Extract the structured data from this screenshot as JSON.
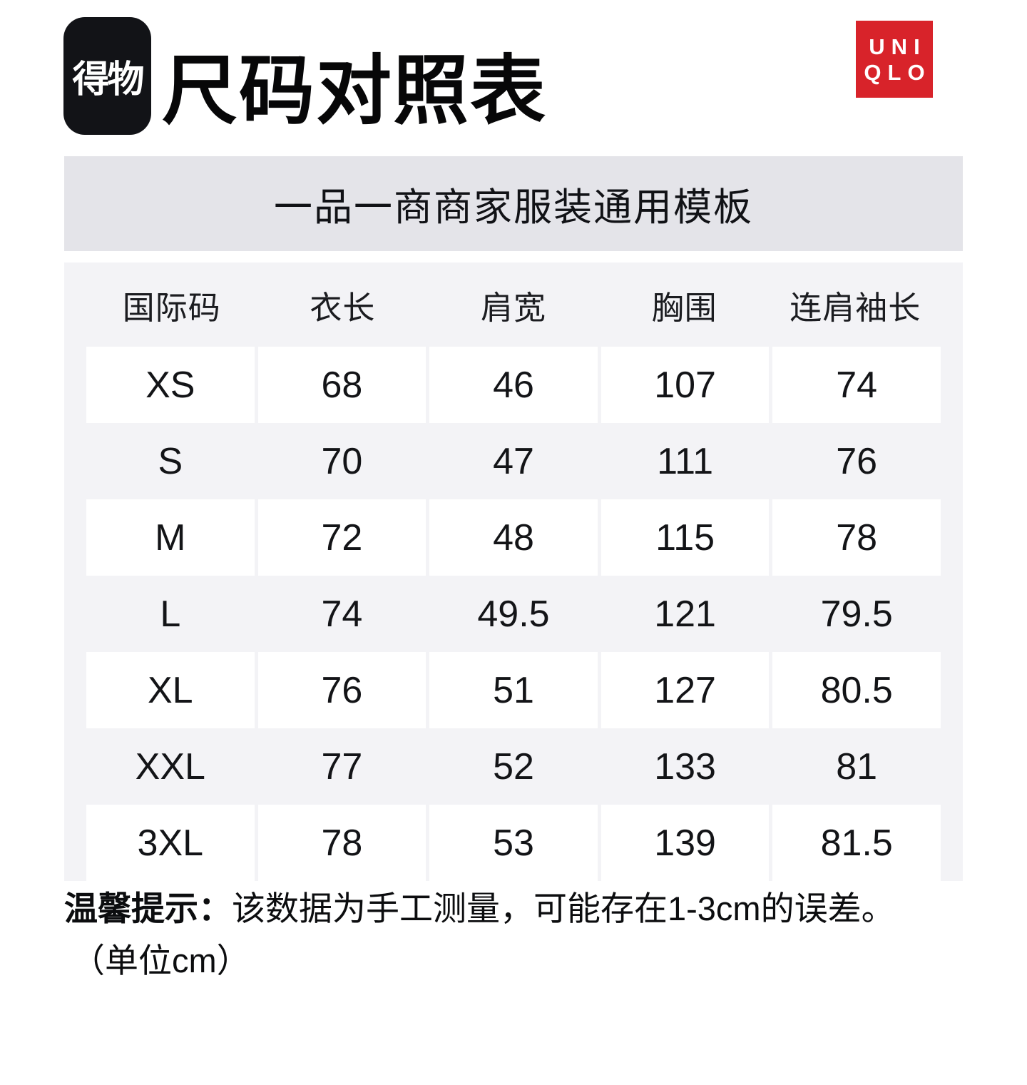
{
  "colors": {
    "brand_red": "#d8232a",
    "banner_bg": "#e4e4e9",
    "table_bg": "#f3f3f6",
    "cell_white": "#ffffff"
  },
  "header": {
    "app_logo_text": "得物",
    "title": "尺码对照表",
    "brand_logo": {
      "line1": "UNI",
      "line2": "QLO"
    }
  },
  "banner": {
    "text": "一品一商商家服装通用模板"
  },
  "size_table": {
    "columns": [
      "国际码",
      "衣长",
      "肩宽",
      "胸围",
      "连肩袖长"
    ],
    "rows": [
      {
        "size": "XS",
        "values": [
          "68",
          "46",
          "107",
          "74"
        ]
      },
      {
        "size": "S",
        "values": [
          "70",
          "47",
          "111",
          "76"
        ]
      },
      {
        "size": "M",
        "values": [
          "72",
          "48",
          "115",
          "78"
        ]
      },
      {
        "size": "L",
        "values": [
          "74",
          "49.5",
          "121",
          "79.5"
        ]
      },
      {
        "size": "XL",
        "values": [
          "76",
          "51",
          "127",
          "80.5"
        ]
      },
      {
        "size": "XXL",
        "values": [
          "77",
          "52",
          "133",
          "81"
        ]
      },
      {
        "size": "3XL",
        "values": [
          "78",
          "53",
          "139",
          "81.5"
        ]
      }
    ]
  },
  "footnote": {
    "label": "温馨提示：",
    "text": "该数据为手工测量，可能存在1-3cm的误差。",
    "unit": "（单位cm）"
  }
}
